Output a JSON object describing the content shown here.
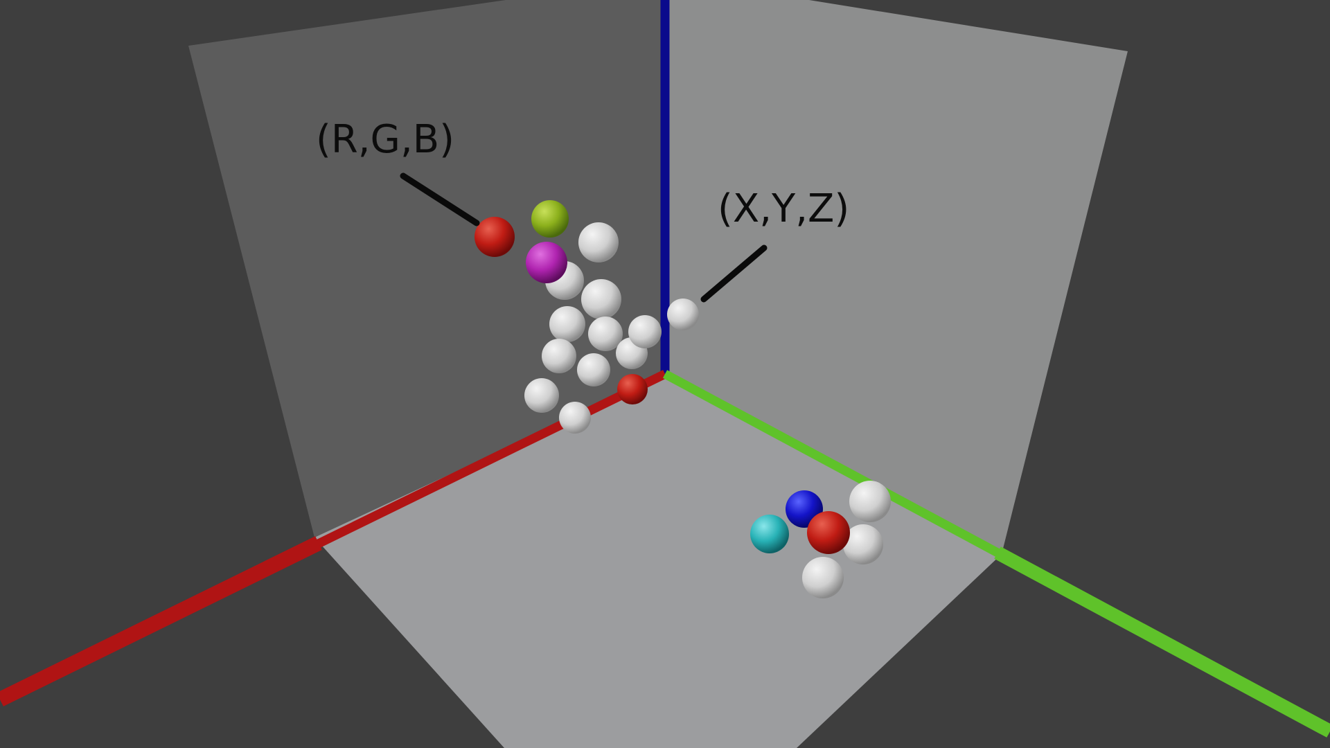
{
  "labels": {
    "color_label": "(R,G,B)",
    "coord_label": "(X,Y,Z)"
  },
  "colors": {
    "background": "#3e3e3e",
    "x_axis": "#b01414",
    "y_axis": "#5fc22a",
    "z_axis": "#0a0a8c",
    "left_wall": "#5c5c5c",
    "right_wall": "#8d8e8e",
    "floor": "#9c9d9f",
    "sphere_gray": "#d2d2d2",
    "sphere_red": "#c41a14",
    "sphere_green": "#8fb41c",
    "sphere_magenta": "#b424b4",
    "sphere_blue": "#1414c8",
    "sphere_cyan": "#28b4b8",
    "leader_line": "#0a0a0a"
  },
  "spheres": [
    {
      "color": "sphere_gray"
    },
    {
      "color": "sphere_gray"
    },
    {
      "color": "sphere_gray"
    },
    {
      "color": "sphere_gray"
    },
    {
      "color": "sphere_gray"
    },
    {
      "color": "sphere_gray"
    },
    {
      "color": "sphere_gray"
    },
    {
      "color": "sphere_gray"
    },
    {
      "color": "sphere_gray"
    },
    {
      "color": "sphere_gray"
    },
    {
      "color": "sphere_gray"
    },
    {
      "color": "sphere_gray"
    },
    {
      "color": "sphere_red"
    },
    {
      "color": "sphere_green"
    },
    {
      "color": "sphere_red"
    },
    {
      "color": "sphere_magenta"
    },
    {
      "color": "sphere_gray"
    },
    {
      "color": "sphere_gray"
    },
    {
      "color": "sphere_gray"
    },
    {
      "color": "sphere_cyan"
    },
    {
      "color": "sphere_blue"
    },
    {
      "color": "sphere_red"
    }
  ]
}
